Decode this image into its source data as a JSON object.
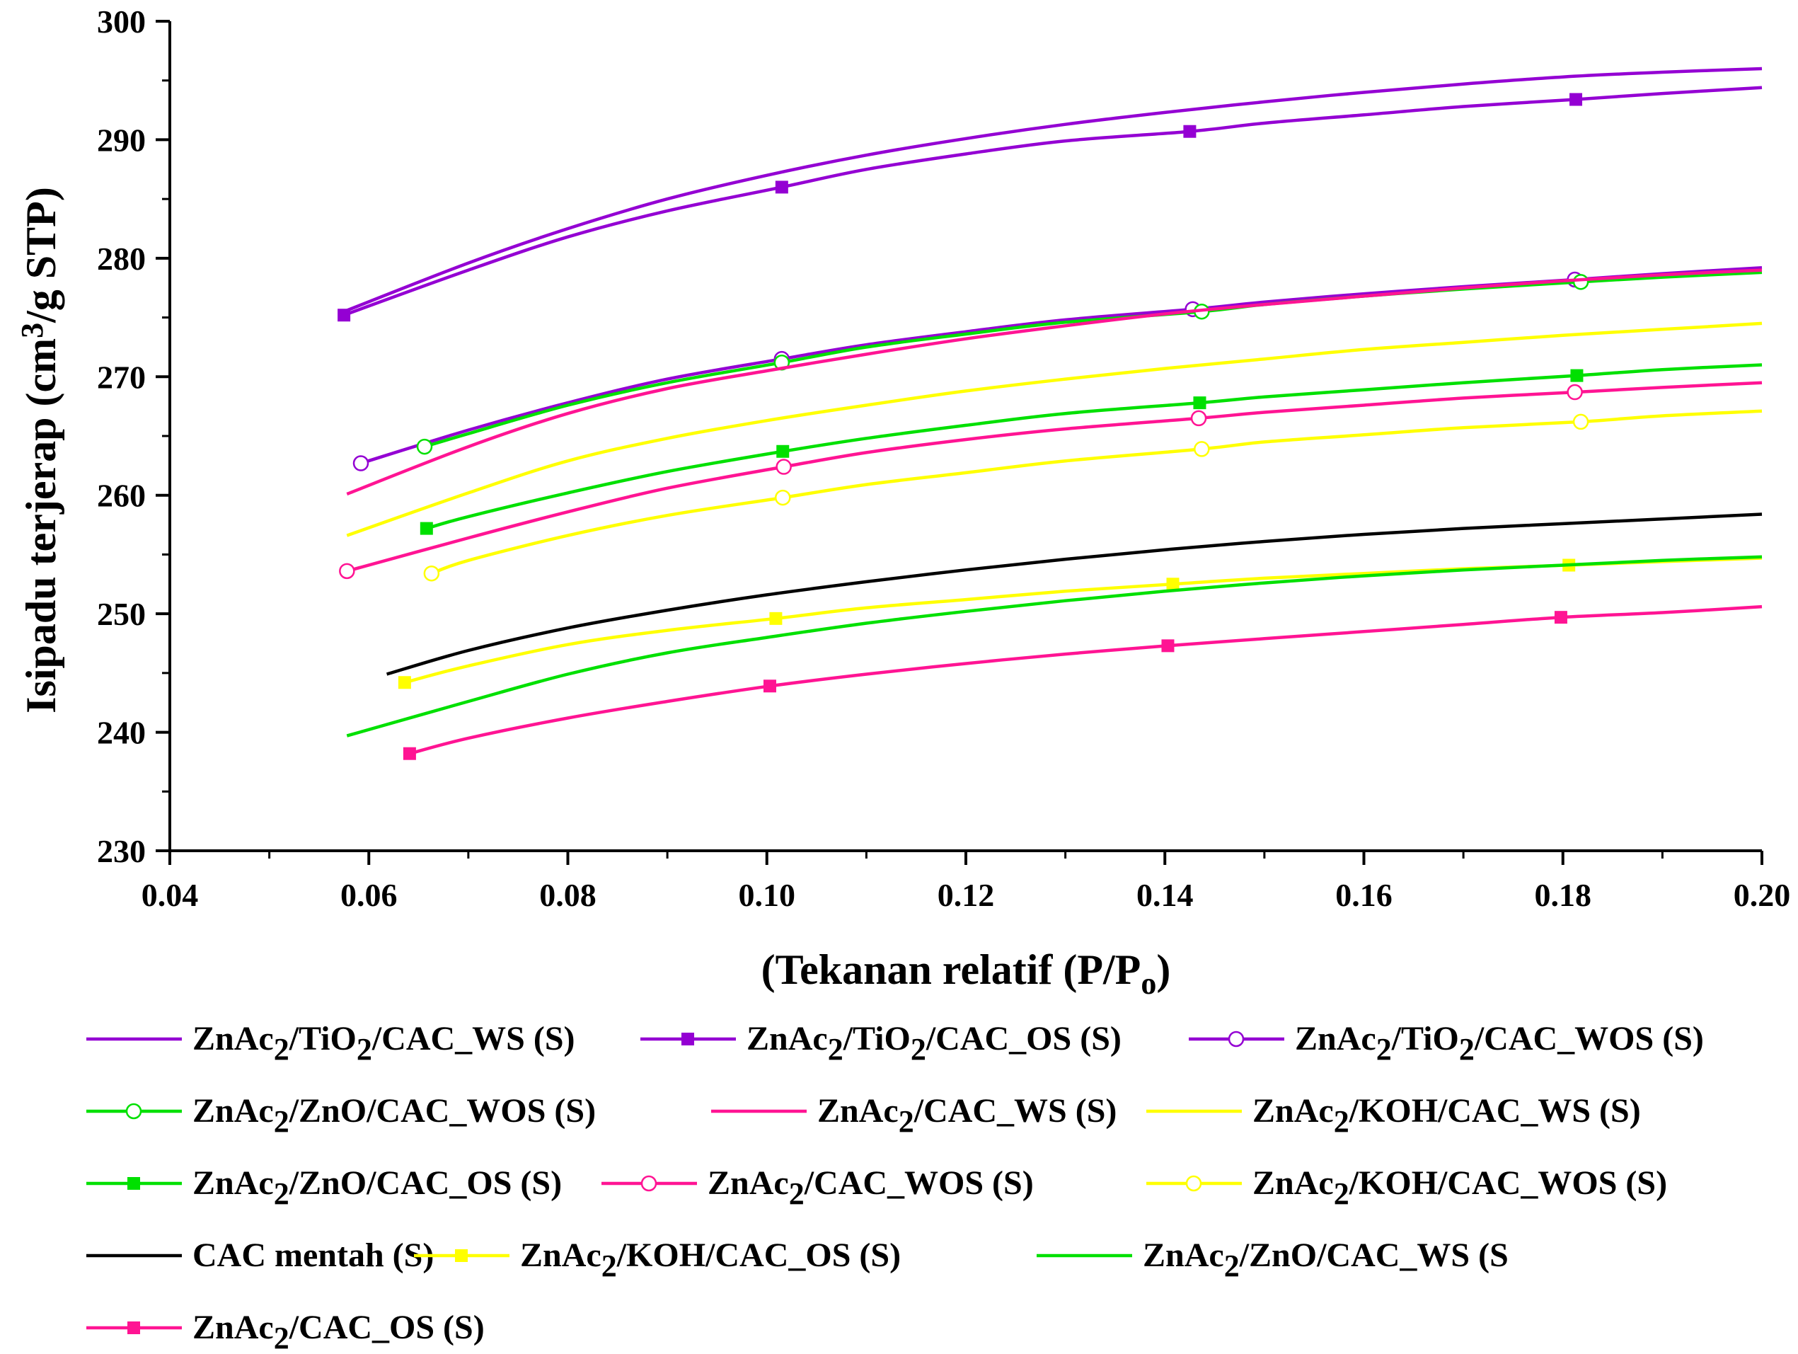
{
  "chart_data": {
    "type": "line",
    "xlabel": "(Tekanan relatif (P/P",
    "xlabel_sub": "o",
    "xlabel_close": ")",
    "ylabel": "Isipadu terjerap (cm",
    "ylabel_sup": "3",
    "ylabel_end": "/g STP)",
    "xlim": [
      0.04,
      0.2
    ],
    "ylim": [
      230,
      300
    ],
    "xticks": [
      "0.04",
      "0.06",
      "0.08",
      "0.10",
      "0.12",
      "0.14",
      "0.16",
      "0.18",
      "0.20"
    ],
    "yticks": [
      "230",
      "240",
      "250",
      "260",
      "270",
      "280",
      "290",
      "300"
    ],
    "grid": false,
    "legend_position": "bottom",
    "series": [
      {
        "name": "ZnAc2/TiO2/CAC_WS (S)",
        "legend_parts": [
          [
            "ZnAc",
            ""
          ],
          [
            "2",
            "sub"
          ],
          [
            "/TiO",
            ""
          ],
          [
            "2",
            "sub"
          ],
          [
            "/CAC_WS (S)",
            ""
          ]
        ],
        "color": "#9400D3",
        "marker": "none",
        "x": [
          0.0575,
          0.07,
          0.08,
          0.09,
          0.1,
          0.11,
          0.12,
          0.13,
          0.14,
          0.15,
          0.16,
          0.17,
          0.18,
          0.19,
          0.2
        ],
        "y": [
          275.5,
          279.6,
          282.5,
          285.0,
          287.0,
          288.7,
          290.1,
          291.3,
          292.3,
          293.2,
          294.0,
          294.7,
          295.3,
          295.7,
          296.0
        ]
      },
      {
        "name": "ZnAc2/TiO2/CAC_OS (S)",
        "legend_parts": [
          [
            "ZnAc",
            ""
          ],
          [
            "2",
            "sub"
          ],
          [
            "/TiO",
            ""
          ],
          [
            "2",
            "sub"
          ],
          [
            "/CAC_OS (S)",
            ""
          ]
        ],
        "color": "#9400D3",
        "marker": "filled-square",
        "x": [
          0.0575,
          0.07,
          0.08,
          0.09,
          0.1015,
          0.11,
          0.12,
          0.13,
          0.1425,
          0.15,
          0.16,
          0.17,
          0.1813,
          0.19,
          0.2
        ],
        "y": [
          275.2,
          279.0,
          281.8,
          284.0,
          286.0,
          287.5,
          288.8,
          289.9,
          290.7,
          291.4,
          292.1,
          292.8,
          293.4,
          293.9,
          294.4
        ]
      },
      {
        "name": "ZnAc2/TiO2/CAC_WOS (S)",
        "legend_parts": [
          [
            "ZnAc",
            ""
          ],
          [
            "2",
            "sub"
          ],
          [
            "/TiO",
            ""
          ],
          [
            "2",
            "sub"
          ],
          [
            "/CAC_WOS (S)",
            ""
          ]
        ],
        "color": "#9400D3",
        "marker": "open-circle",
        "x": [
          0.0592,
          0.07,
          0.08,
          0.09,
          0.1015,
          0.11,
          0.12,
          0.13,
          0.1428,
          0.15,
          0.16,
          0.17,
          0.1812,
          0.19,
          0.2
        ],
        "y": [
          262.7,
          265.5,
          267.8,
          269.8,
          271.5,
          272.7,
          273.8,
          274.8,
          275.7,
          276.3,
          277.0,
          277.6,
          278.2,
          278.7,
          279.2
        ]
      },
      {
        "name": "ZnAc2/ZnO/CAC_WOS (S)",
        "legend_parts": [
          [
            "ZnAc",
            ""
          ],
          [
            "2",
            "sub"
          ],
          [
            "/ZnO/CAC_WOS (S)",
            ""
          ]
        ],
        "color": "#00E000",
        "marker": "open-circle",
        "x": [
          0.0656,
          0.07,
          0.08,
          0.09,
          0.1015,
          0.11,
          0.12,
          0.13,
          0.1437,
          0.15,
          0.16,
          0.17,
          0.1818,
          0.19,
          0.2
        ],
        "y": [
          264.1,
          265.2,
          267.6,
          269.5,
          271.2,
          272.5,
          273.6,
          274.6,
          275.5,
          276.1,
          276.8,
          277.4,
          278.0,
          278.4,
          278.8
        ]
      },
      {
        "name": "ZnAc2/CAC_WS (S)",
        "legend_parts": [
          [
            "ZnAc",
            ""
          ],
          [
            "2",
            "sub"
          ],
          [
            "/CAC_WS (S)",
            ""
          ]
        ],
        "color": "#FF1493",
        "marker": "none",
        "x": [
          0.0578,
          0.07,
          0.08,
          0.09,
          0.1,
          0.11,
          0.12,
          0.13,
          0.14,
          0.15,
          0.16,
          0.17,
          0.18,
          0.19,
          0.2
        ],
        "y": [
          260.1,
          264.1,
          266.9,
          269.0,
          270.5,
          271.9,
          273.2,
          274.3,
          275.3,
          276.1,
          276.8,
          277.5,
          278.1,
          278.6,
          279.0
        ]
      },
      {
        "name": "ZnAc2/KOH/CAC_WS (S)",
        "legend_parts": [
          [
            "ZnAc",
            ""
          ],
          [
            "2",
            "sub"
          ],
          [
            "/KOH/CAC_WS (S)",
            ""
          ]
        ],
        "color": "#FFFF00",
        "marker": "none",
        "x": [
          0.0578,
          0.07,
          0.08,
          0.09,
          0.1,
          0.11,
          0.12,
          0.13,
          0.14,
          0.15,
          0.16,
          0.17,
          0.18,
          0.19,
          0.2
        ],
        "y": [
          256.6,
          260.2,
          262.9,
          264.8,
          266.3,
          267.6,
          268.8,
          269.8,
          270.7,
          271.5,
          272.3,
          272.9,
          273.5,
          274.0,
          274.5
        ]
      },
      {
        "name": "ZnAc2/ZnO/CAC_OS (S)",
        "legend_parts": [
          [
            "ZnAc",
            ""
          ],
          [
            "2",
            "sub"
          ],
          [
            "/ZnO/CAC_OS (S)",
            ""
          ]
        ],
        "color": "#00E000",
        "marker": "filled-square",
        "x": [
          0.0658,
          0.07,
          0.08,
          0.09,
          0.1016,
          0.11,
          0.12,
          0.13,
          0.1435,
          0.15,
          0.16,
          0.17,
          0.1814,
          0.19,
          0.2
        ],
        "y": [
          257.2,
          258.2,
          260.2,
          262.0,
          263.7,
          264.8,
          265.9,
          266.9,
          267.8,
          268.3,
          268.9,
          269.5,
          270.1,
          270.6,
          271.0
        ]
      },
      {
        "name": "ZnAc2/CAC_WOS (S)",
        "legend_parts": [
          [
            "ZnAc",
            ""
          ],
          [
            "2",
            "sub"
          ],
          [
            "/CAC_WOS (S)",
            ""
          ]
        ],
        "color": "#FF1493",
        "marker": "open-circle",
        "x": [
          0.0578,
          0.07,
          0.08,
          0.09,
          0.1017,
          0.11,
          0.12,
          0.13,
          0.1434,
          0.15,
          0.16,
          0.17,
          0.1812,
          0.19,
          0.2
        ],
        "y": [
          253.6,
          256.4,
          258.6,
          260.6,
          262.4,
          263.6,
          264.7,
          265.6,
          266.5,
          267.0,
          267.6,
          268.2,
          268.7,
          269.1,
          269.5
        ]
      },
      {
        "name": "ZnAc2/KOH/CAC_WOS (S)",
        "legend_parts": [
          [
            "ZnAc",
            ""
          ],
          [
            "2",
            "sub"
          ],
          [
            "/KOH/CAC_WOS (S)",
            ""
          ]
        ],
        "color": "#FFFF00",
        "marker": "open-circle",
        "x": [
          0.0663,
          0.07,
          0.08,
          0.09,
          0.1016,
          0.11,
          0.12,
          0.13,
          0.1437,
          0.15,
          0.16,
          0.17,
          0.1818,
          0.19,
          0.2
        ],
        "y": [
          253.4,
          254.5,
          256.6,
          258.3,
          259.8,
          260.9,
          261.9,
          262.9,
          263.9,
          264.5,
          265.1,
          265.7,
          266.2,
          266.7,
          267.1
        ]
      },
      {
        "name": "CAC mentah (S)",
        "legend_parts": [
          [
            "CAC mentah (S)",
            ""
          ]
        ],
        "color": "#000000",
        "marker": "none",
        "x": [
          0.0618,
          0.07,
          0.08,
          0.09,
          0.1,
          0.11,
          0.12,
          0.13,
          0.14,
          0.15,
          0.16,
          0.17,
          0.18,
          0.19,
          0.2
        ],
        "y": [
          244.9,
          246.9,
          248.8,
          250.3,
          251.6,
          252.7,
          253.7,
          254.6,
          255.4,
          256.1,
          256.7,
          257.2,
          257.6,
          258.0,
          258.4
        ]
      },
      {
        "name": "ZnAc2/KOH/CAC_OS (S)",
        "legend_parts": [
          [
            "ZnAc",
            ""
          ],
          [
            "2",
            "sub"
          ],
          [
            "/KOH/CAC_OS (S)",
            ""
          ]
        ],
        "color": "#FFFF00",
        "marker": "filled-square",
        "x": [
          0.0636,
          0.07,
          0.08,
          0.09,
          0.1009,
          0.11,
          0.12,
          0.13,
          0.1408,
          0.15,
          0.16,
          0.17,
          0.1806,
          0.19,
          0.2
        ],
        "y": [
          244.2,
          245.6,
          247.4,
          248.6,
          249.6,
          250.5,
          251.2,
          251.9,
          252.5,
          253.0,
          253.4,
          253.8,
          254.1,
          254.4,
          254.7
        ]
      },
      {
        "name": "ZnAc2/ZnO/CAC_WS (S",
        "legend_parts": [
          [
            "ZnAc",
            ""
          ],
          [
            "2",
            "sub"
          ],
          [
            "/ZnO/CAC_WS (S",
            ""
          ]
        ],
        "color": "#00E000",
        "marker": "none",
        "x": [
          0.0578,
          0.07,
          0.08,
          0.09,
          0.1,
          0.11,
          0.12,
          0.13,
          0.14,
          0.15,
          0.16,
          0.17,
          0.18,
          0.19,
          0.2
        ],
        "y": [
          239.7,
          242.6,
          244.9,
          246.7,
          248.0,
          249.2,
          250.2,
          251.1,
          251.9,
          252.6,
          253.2,
          253.7,
          254.1,
          254.5,
          254.8
        ]
      },
      {
        "name": "ZnAc2/CAC_OS (S)",
        "legend_parts": [
          [
            "ZnAc",
            ""
          ],
          [
            "2",
            "sub"
          ],
          [
            "/CAC_OS (S)",
            ""
          ]
        ],
        "color": "#FF1493",
        "marker": "filled-square",
        "x": [
          0.0641,
          0.07,
          0.08,
          0.09,
          0.1003,
          0.11,
          0.12,
          0.13,
          0.1403,
          0.15,
          0.16,
          0.17,
          0.1798,
          0.19,
          0.2
        ],
        "y": [
          238.2,
          239.5,
          241.2,
          242.6,
          243.9,
          244.9,
          245.8,
          246.6,
          247.3,
          247.9,
          248.5,
          249.1,
          249.7,
          250.1,
          250.6
        ]
      }
    ],
    "marker_points": {
      "ZnAc2/TiO2/CAC_OS (S)": [
        0,
        4,
        8,
        12
      ],
      "ZnAc2/TiO2/CAC_WOS (S)": [
        0,
        4,
        8,
        12
      ],
      "ZnAc2/ZnO/CAC_WOS (S)": [
        0,
        4,
        8,
        12
      ],
      "ZnAc2/ZnO/CAC_OS (S)": [
        0,
        4,
        8,
        12
      ],
      "ZnAc2/CAC_WOS (S)": [
        0,
        4,
        8,
        12
      ],
      "ZnAc2/KOH/CAC_WOS (S)": [
        0,
        4,
        8,
        12
      ],
      "ZnAc2/KOH/CAC_OS (S)": [
        0,
        4,
        8,
        12
      ],
      "ZnAc2/CAC_OS (S)": [
        0,
        4,
        8,
        12
      ]
    }
  }
}
